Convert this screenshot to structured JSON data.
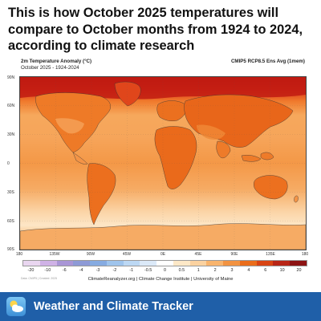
{
  "headline": "This is how October 2025 temperatures will compare to October months from 1924 to 2024, according to climate research",
  "map": {
    "title": "2m Temperature Anomaly (°C)",
    "subtitle": "October 2025 - 1924-2024",
    "model": "CMIP5 RCP8.5 Ens Avg (1mem)",
    "lat_labels": [
      "90N",
      "60N",
      "30N",
      "0",
      "30S",
      "60S",
      "90S"
    ],
    "lon_labels": [
      "180",
      "135W",
      "90W",
      "45W",
      "0E",
      "45E",
      "90E",
      "135E",
      "180"
    ],
    "colorbar": {
      "ticks": [
        "-20",
        "-10",
        "-6",
        "-4",
        "-3",
        "-2",
        "-1",
        "-0.5",
        "0",
        "0.5",
        "1",
        "2",
        "3",
        "4",
        "6",
        "10",
        "20"
      ],
      "colors": [
        "#e9d6f0",
        "#cfb2e6",
        "#a996d6",
        "#8e9ad6",
        "#86abe1",
        "#9fc4ec",
        "#bcd8f4",
        "#dbe9f8",
        "#ffffff",
        "#fde8c7",
        "#fbd2a0",
        "#f8b46d",
        "#f29342",
        "#ea6d1b",
        "#d84414",
        "#b82516",
        "#8d1313"
      ]
    },
    "credit": "ClimateReanalyzer.org | Climate Change Institute | University of Maine",
    "tiny_note": "Data: CMIP5 | Created: 2025"
  },
  "footer": {
    "title": "Weather and Climate Tracker",
    "icon": "weather-app-icon"
  }
}
